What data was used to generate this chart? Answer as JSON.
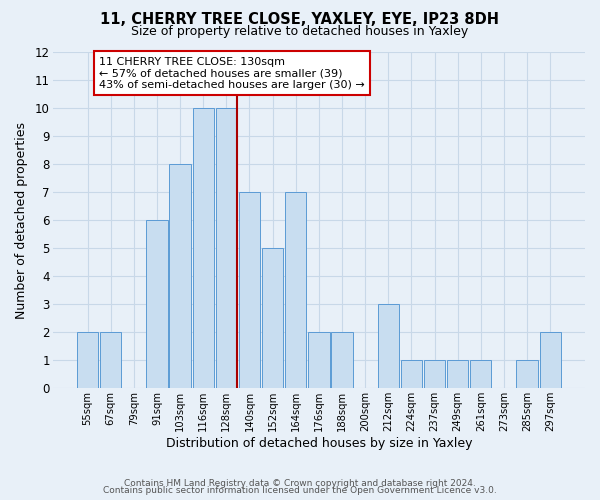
{
  "title": "11, CHERRY TREE CLOSE, YAXLEY, EYE, IP23 8DH",
  "subtitle": "Size of property relative to detached houses in Yaxley",
  "xlabel": "Distribution of detached houses by size in Yaxley",
  "ylabel": "Number of detached properties",
  "bin_labels": [
    "55sqm",
    "67sqm",
    "79sqm",
    "91sqm",
    "103sqm",
    "116sqm",
    "128sqm",
    "140sqm",
    "152sqm",
    "164sqm",
    "176sqm",
    "188sqm",
    "200sqm",
    "212sqm",
    "224sqm",
    "237sqm",
    "249sqm",
    "261sqm",
    "273sqm",
    "285sqm",
    "297sqm"
  ],
  "bar_heights": [
    2,
    2,
    0,
    6,
    8,
    10,
    10,
    7,
    5,
    7,
    2,
    2,
    0,
    3,
    1,
    1,
    1,
    1,
    0,
    1,
    2
  ],
  "bar_color": "#c8ddf0",
  "bar_edge_color": "#5b9bd5",
  "highlight_line_color": "#aa0000",
  "ylim": [
    0,
    12
  ],
  "yticks": [
    0,
    1,
    2,
    3,
    4,
    5,
    6,
    7,
    8,
    9,
    10,
    11,
    12
  ],
  "annotation_title": "11 CHERRY TREE CLOSE: 130sqm",
  "annotation_line1": "← 57% of detached houses are smaller (39)",
  "annotation_line2": "43% of semi-detached houses are larger (30) →",
  "annotation_box_color": "#ffffff",
  "annotation_box_edge": "#cc0000",
  "footer1": "Contains HM Land Registry data © Crown copyright and database right 2024.",
  "footer2": "Contains public sector information licensed under the Open Government Licence v3.0.",
  "grid_color": "#c8d8e8",
  "background_color": "#e8f0f8"
}
